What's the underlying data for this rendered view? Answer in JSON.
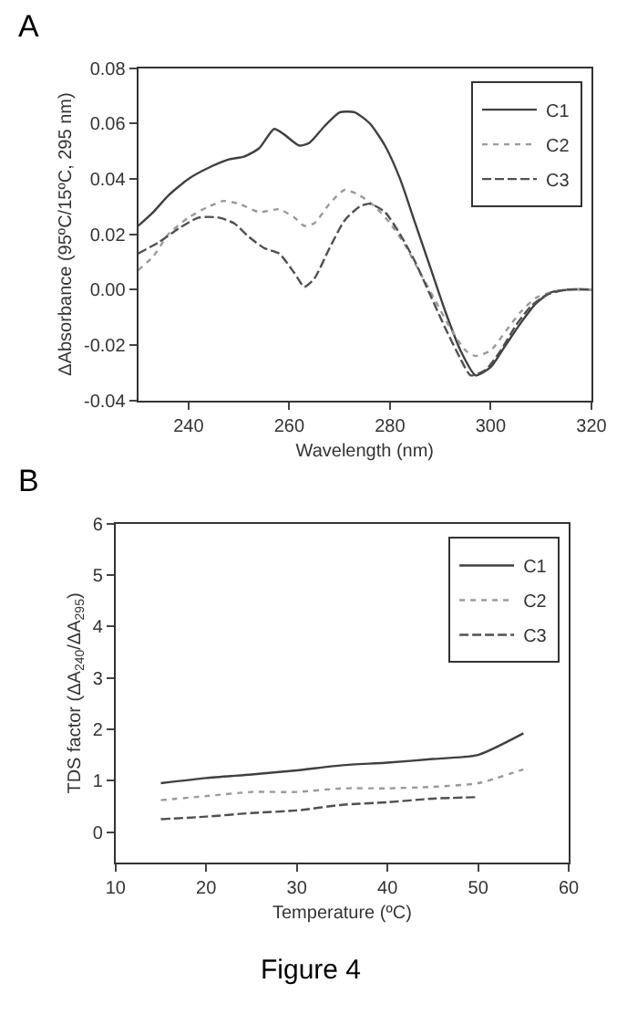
{
  "chart_data": [
    {
      "type": "line",
      "title": "A",
      "xlabel": "Wavelength (nm)",
      "ylabel": "ΔAbsorbance (95ºC/15ºC, 295 nm)",
      "xlim": [
        230,
        320
      ],
      "xticks": [
        240,
        260,
        280,
        300,
        320
      ],
      "ylim": [
        -0.04,
        0.08
      ],
      "yticks": [
        {
          "value": -0.04,
          "label": "-0.04"
        },
        {
          "value": -0.02,
          "label": "-0.02"
        },
        {
          "value": 0,
          "label": "0.00"
        },
        {
          "value": 0.02,
          "label": "0.02"
        },
        {
          "value": 0.04,
          "label": "0.04"
        },
        {
          "value": 0.06,
          "label": "0.06"
        },
        {
          "value": 0.08,
          "label": "0.08"
        }
      ],
      "legend": "top right",
      "marker": "none",
      "series": [
        {
          "name": "C1",
          "color": "#404040",
          "line_style": "solid",
          "x": [
            230,
            233,
            236,
            240,
            244,
            248,
            251,
            254,
            257,
            259,
            262,
            264,
            267,
            270,
            273,
            276,
            279,
            282,
            285,
            288,
            291,
            294,
            297,
            300,
            303,
            306,
            309,
            312,
            316,
            320
          ],
          "values": [
            0.023,
            0.028,
            0.034,
            0.04,
            0.044,
            0.047,
            0.048,
            0.051,
            0.058,
            0.056,
            0.052,
            0.053,
            0.059,
            0.064,
            0.064,
            0.06,
            0.052,
            0.04,
            0.024,
            0.008,
            -0.008,
            -0.022,
            -0.031,
            -0.028,
            -0.02,
            -0.012,
            -0.005,
            -0.001,
            0.0,
            0.0
          ]
        },
        {
          "name": "C2",
          "color": "#9a9a9a",
          "line_style": "dotted",
          "x": [
            230,
            233,
            236,
            240,
            244,
            247,
            250,
            254,
            258,
            261,
            263,
            265,
            268,
            271,
            274,
            277,
            280,
            283,
            286,
            289,
            292,
            295,
            297,
            300,
            303,
            306,
            309,
            312,
            316,
            320
          ],
          "values": [
            0.007,
            0.012,
            0.02,
            0.026,
            0.03,
            0.032,
            0.031,
            0.028,
            0.029,
            0.026,
            0.023,
            0.024,
            0.031,
            0.036,
            0.034,
            0.03,
            0.024,
            0.016,
            0.006,
            -0.004,
            -0.014,
            -0.022,
            -0.024,
            -0.022,
            -0.015,
            -0.008,
            -0.003,
            -0.001,
            0.0,
            0.0
          ]
        },
        {
          "name": "C3",
          "color": "#505050",
          "line_style": "dashed",
          "x": [
            230,
            234,
            238,
            242,
            246,
            249,
            252,
            255,
            258,
            261,
            263,
            265,
            268,
            271,
            274,
            276,
            279,
            282,
            285,
            288,
            291,
            294,
            296,
            299,
            302,
            305,
            308,
            311,
            315,
            320
          ],
          "values": [
            0.013,
            0.017,
            0.022,
            0.026,
            0.026,
            0.024,
            0.019,
            0.015,
            0.013,
            0.006,
            0.001,
            0.004,
            0.015,
            0.025,
            0.03,
            0.031,
            0.028,
            0.02,
            0.01,
            -0.002,
            -0.014,
            -0.025,
            -0.031,
            -0.029,
            -0.022,
            -0.013,
            -0.006,
            -0.002,
            0.0,
            0.0
          ]
        }
      ]
    },
    {
      "type": "line",
      "title": "B",
      "xlabel": "Temperature (ºC)",
      "ylabel": "TDS factor (ΔA$_{240}$/ΔA$_{295}$)",
      "xlim": [
        10,
        60
      ],
      "xticks": [
        10,
        20,
        30,
        40,
        50,
        60
      ],
      "ylim": [
        -0.6,
        6
      ],
      "yticks": [
        0,
        1,
        2,
        3,
        4,
        5,
        6
      ],
      "legend": "top right",
      "marker": "none",
      "annotations": [
        "Figure 4"
      ],
      "series": [
        {
          "name": "C1",
          "color": "#404040",
          "line_style": "solid",
          "x": [
            15,
            20,
            25,
            30,
            35,
            40,
            45,
            50,
            55
          ],
          "values": [
            0.95,
            1.05,
            1.12,
            1.2,
            1.3,
            1.35,
            1.42,
            1.5,
            1.92
          ]
        },
        {
          "name": "C2",
          "color": "#9a9a9a",
          "line_style": "dotted",
          "x": [
            15,
            20,
            25,
            30,
            35,
            40,
            45,
            50,
            55
          ],
          "values": [
            0.62,
            0.7,
            0.78,
            0.78,
            0.85,
            0.85,
            0.88,
            0.95,
            1.22
          ]
        },
        {
          "name": "C3",
          "color": "#505050",
          "line_style": "dashed",
          "x": [
            15,
            20,
            25,
            30,
            35,
            40,
            45,
            50
          ],
          "values": [
            0.25,
            0.3,
            0.37,
            0.42,
            0.53,
            0.58,
            0.65,
            0.68
          ]
        }
      ]
    }
  ]
}
